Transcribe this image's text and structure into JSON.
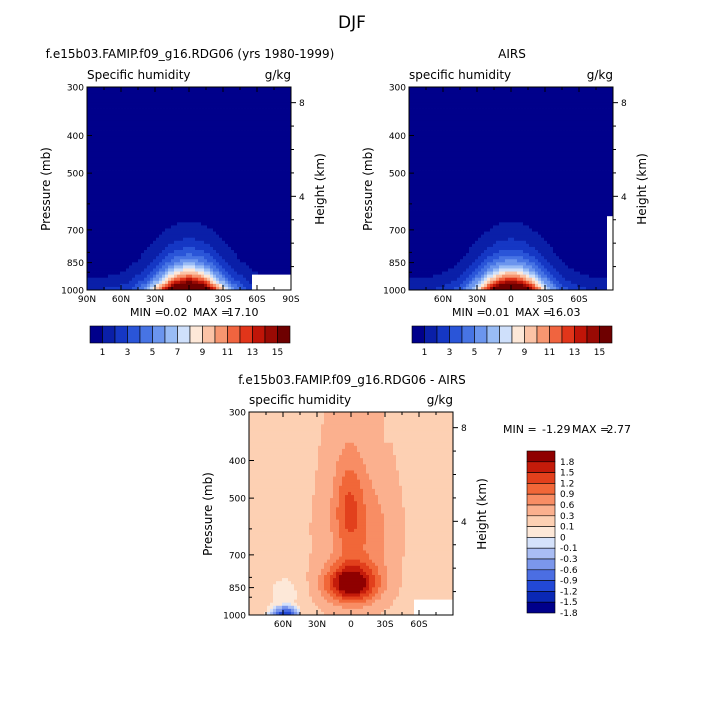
{
  "page_title": "DJF",
  "colors": {
    "seq": [
      "#00008b",
      "#0a1fa8",
      "#1537c4",
      "#2a55d8",
      "#4774e4",
      "#6b95ee",
      "#99bcf5",
      "#cfe0fb",
      "#fde8d8",
      "#fbc3a6",
      "#f79670",
      "#f0643f",
      "#e1351a",
      "#c01508",
      "#9a0a04",
      "#6e0000"
    ],
    "diff": [
      "#00008b",
      "#0a28b5",
      "#2248d6",
      "#4b6ee3",
      "#7b97ec",
      "#a9bdf4",
      "#d5e2fb",
      "#fde8d8",
      "#fdd0b3",
      "#fbb08e",
      "#f88d64",
      "#f16738",
      "#e2401c",
      "#c41b0a",
      "#8f0000"
    ]
  },
  "chart_data": [
    {
      "type": "heatmap",
      "name": "model",
      "title": "f.e15b03.FAMIP.f09_g16.RDG06 (yrs 1980-1999)",
      "subtitle_left": "Specific humidity",
      "subtitle_right": "g/kg",
      "ylabel": "Pressure (mb)",
      "ylabel_right": "Height (km)",
      "y_ticks": [
        "300",
        "400",
        "500",
        "700",
        "850",
        "1000"
      ],
      "y_tick_values": [
        300,
        400,
        500,
        700,
        850,
        1000
      ],
      "right_ticks": [
        "8",
        "4"
      ],
      "right_tick_values": [
        8,
        4
      ],
      "x_ticks": [
        "90N",
        "60N",
        "30N",
        "0",
        "30S",
        "60S",
        "90S"
      ],
      "x_tick_values": [
        90,
        60,
        30,
        0,
        -30,
        -60,
        -90
      ],
      "xlim": [
        90,
        -90
      ],
      "peak": 17.1,
      "land_lat": [
        -55,
        -90
      ],
      "land_p": 920,
      "stats": {
        "min_label": "MIN =",
        "min": "0.02",
        "max_label": "MAX =",
        "max": "17.10"
      },
      "colorbar": {
        "labels": [
          "1",
          "3",
          "5",
          "7",
          "9",
          "11",
          "13",
          "15"
        ],
        "levels": [
          1,
          2,
          3,
          4,
          5,
          6,
          7,
          8,
          9,
          10,
          11,
          12,
          13,
          14,
          15
        ]
      }
    },
    {
      "type": "heatmap",
      "name": "obs",
      "title": "AIRS",
      "subtitle_left": "specific humidity",
      "subtitle_right": "g/kg",
      "ylabel": "Pressure (mb)",
      "ylabel_right": "Height (km)",
      "y_ticks": [
        "300",
        "400",
        "500",
        "700",
        "850",
        "1000"
      ],
      "y_tick_values": [
        300,
        400,
        500,
        700,
        850,
        1000
      ],
      "right_ticks": [
        "8",
        "4"
      ],
      "right_tick_values": [
        8,
        4
      ],
      "x_ticks": [
        "60N",
        "30N",
        "0",
        "30S",
        "60S"
      ],
      "x_tick_values": [
        60,
        30,
        0,
        -30,
        -60
      ],
      "xlim": [
        90,
        -90
      ],
      "peak": 16.03,
      "land_lat": [
        -84,
        -90
      ],
      "land_p": 650,
      "stats": {
        "min_label": "MIN =",
        "min": "0.01",
        "max_label": "MAX =",
        "max": "16.03"
      },
      "colorbar": {
        "labels": [
          "1",
          "3",
          "5",
          "7",
          "9",
          "11",
          "13",
          "15"
        ],
        "levels": [
          1,
          2,
          3,
          4,
          5,
          6,
          7,
          8,
          9,
          10,
          11,
          12,
          13,
          14,
          15
        ]
      }
    },
    {
      "type": "heatmap",
      "name": "diff",
      "title": "f.e15b03.FAMIP.f09_g16.RDG06 - AIRS",
      "subtitle_left": "specific humidity",
      "subtitle_right": "g/kg",
      "ylabel": "Pressure (mb)",
      "ylabel_right": "Height (km)",
      "y_ticks": [
        "300",
        "400",
        "500",
        "700",
        "850",
        "1000"
      ],
      "y_tick_values": [
        300,
        400,
        500,
        700,
        850,
        1000
      ],
      "right_ticks": [
        "8",
        "4"
      ],
      "right_tick_values": [
        8,
        4
      ],
      "x_ticks": [
        "60N",
        "30N",
        "0",
        "30S",
        "60S"
      ],
      "x_tick_values": [
        60,
        30,
        0,
        -30,
        -60
      ],
      "xlim": [
        90,
        -90
      ],
      "land_lat": [
        -55,
        -90
      ],
      "land_p": 920,
      "stats": {
        "min_label": "MIN =",
        "min": "-1.29",
        "max_label": "MAX =",
        "max": "2.77"
      },
      "colorbar": {
        "labels": [
          "1.8",
          "1.5",
          "1.2",
          "0.9",
          "0.6",
          "0.3",
          "0.1",
          "0",
          "-0.1",
          "-0.3",
          "-0.6",
          "-0.9",
          "-1.2",
          "-1.5",
          "-1.8"
        ],
        "levels": [
          -1.8,
          -1.5,
          -1.2,
          -0.9,
          -0.6,
          -0.3,
          -0.1,
          0,
          0.1,
          0.3,
          0.6,
          0.9,
          1.2,
          1.5,
          1.8
        ]
      }
    }
  ]
}
